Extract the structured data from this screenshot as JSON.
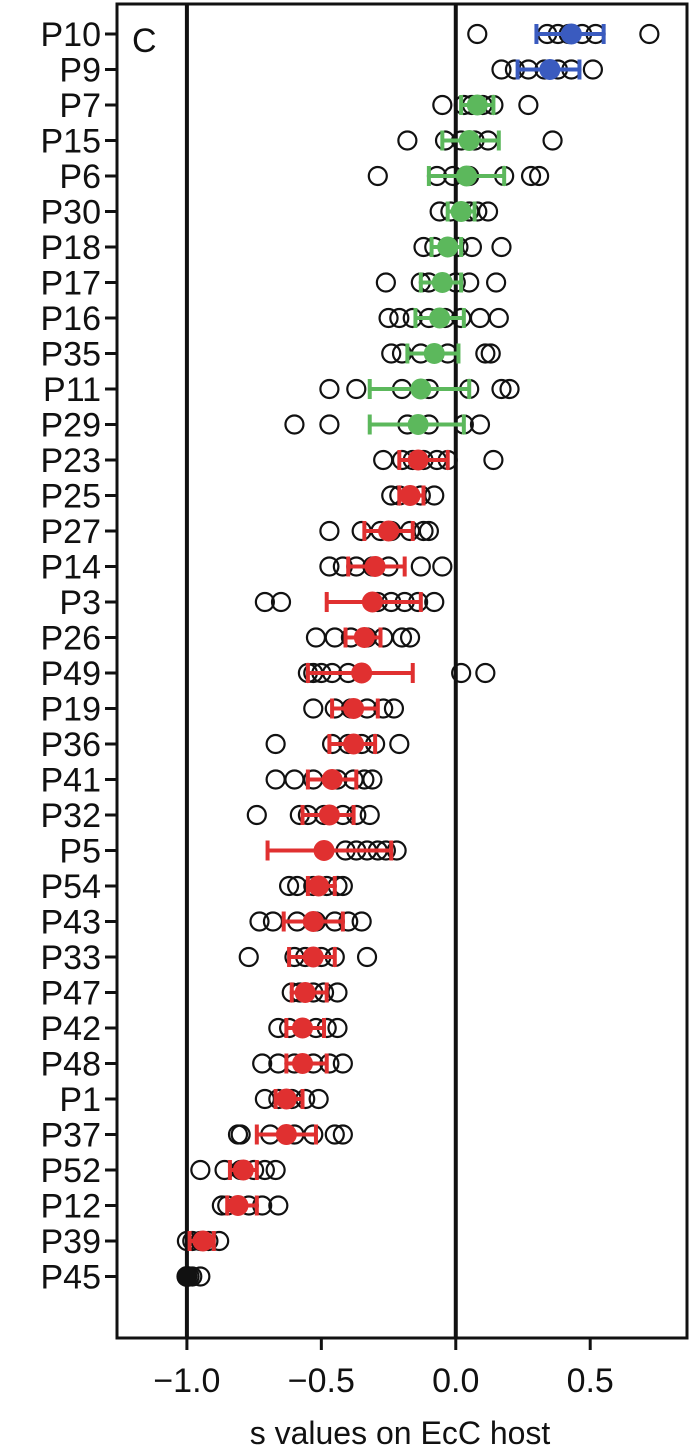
{
  "chart_data": {
    "type": "scatter",
    "panel_label": "C",
    "xlabel": "s values on EcC host",
    "xlim": [
      -1.26,
      0.86
    ],
    "xticks": [
      -1.0,
      -0.5,
      0.0,
      0.5
    ],
    "xtick_labels": [
      "−1.0",
      "−0.5",
      "0.0",
      "0.5"
    ],
    "reference_lines": [
      -1.0,
      0.0
    ],
    "grid": false,
    "legend": "none",
    "colors": {
      "blue": "#3a5bbf",
      "green": "#5cb85c",
      "red": "#e03030",
      "black": "#111111"
    },
    "rows": [
      {
        "label": "P10",
        "color": "blue",
        "mean": 0.43,
        "lo": 0.3,
        "hi": 0.55,
        "points": [
          0.08,
          0.34,
          0.38,
          0.42,
          0.47,
          0.52,
          0.72
        ]
      },
      {
        "label": "P9",
        "color": "blue",
        "mean": 0.35,
        "lo": 0.23,
        "hi": 0.46,
        "points": [
          0.17,
          0.22,
          0.27,
          0.33,
          0.38,
          0.43,
          0.51
        ]
      },
      {
        "label": "P7",
        "color": "green",
        "mean": 0.08,
        "lo": 0.02,
        "hi": 0.14,
        "points": [
          -0.05,
          0.03,
          0.06,
          0.1,
          0.14,
          0.27
        ]
      },
      {
        "label": "P15",
        "color": "green",
        "mean": 0.05,
        "lo": -0.05,
        "hi": 0.16,
        "points": [
          -0.18,
          -0.04,
          0.02,
          0.07,
          0.12,
          0.36
        ]
      },
      {
        "label": "P6",
        "color": "green",
        "mean": 0.04,
        "lo": -0.1,
        "hi": 0.18,
        "points": [
          -0.29,
          -0.07,
          -0.01,
          0.05,
          0.18,
          0.28,
          0.31
        ]
      },
      {
        "label": "P30",
        "color": "green",
        "mean": 0.02,
        "lo": -0.03,
        "hi": 0.07,
        "points": [
          -0.06,
          -0.02,
          0.02,
          0.05,
          0.08,
          0.12
        ]
      },
      {
        "label": "P18",
        "color": "green",
        "mean": -0.03,
        "lo": -0.09,
        "hi": 0.02,
        "points": [
          -0.12,
          -0.08,
          -0.03,
          0.01,
          0.06,
          0.17
        ]
      },
      {
        "label": "P17",
        "color": "green",
        "mean": -0.05,
        "lo": -0.13,
        "hi": 0.02,
        "points": [
          -0.26,
          -0.13,
          -0.1,
          -0.05,
          0.0,
          0.05,
          0.15
        ]
      },
      {
        "label": "P16",
        "color": "green",
        "mean": -0.06,
        "lo": -0.15,
        "hi": 0.03,
        "points": [
          -0.25,
          -0.21,
          -0.16,
          -0.1,
          -0.04,
          0.02,
          0.09,
          0.16
        ]
      },
      {
        "label": "P35",
        "color": "green",
        "mean": -0.08,
        "lo": -0.18,
        "hi": 0.01,
        "points": [
          -0.24,
          -0.2,
          -0.13,
          -0.08,
          -0.03,
          0.11,
          0.13
        ]
      },
      {
        "label": "P11",
        "color": "green",
        "mean": -0.13,
        "lo": -0.32,
        "hi": 0.05,
        "points": [
          -0.47,
          -0.37,
          -0.2,
          -0.13,
          -0.1,
          0.05,
          0.17,
          0.2
        ]
      },
      {
        "label": "P29",
        "color": "green",
        "mean": -0.14,
        "lo": -0.32,
        "hi": 0.03,
        "points": [
          -0.6,
          -0.47,
          -0.18,
          -0.1,
          0.03,
          0.09
        ]
      },
      {
        "label": "P23",
        "color": "red",
        "mean": -0.14,
        "lo": -0.21,
        "hi": -0.03,
        "points": [
          -0.27,
          -0.2,
          -0.16,
          -0.12,
          -0.07,
          -0.03,
          0.14
        ]
      },
      {
        "label": "P25",
        "color": "red",
        "mean": -0.17,
        "lo": -0.21,
        "hi": -0.12,
        "points": [
          -0.24,
          -0.21,
          -0.17,
          -0.13,
          -0.08
        ]
      },
      {
        "label": "P27",
        "color": "red",
        "mean": -0.25,
        "lo": -0.34,
        "hi": -0.16,
        "points": [
          -0.47,
          -0.35,
          -0.28,
          -0.24,
          -0.17,
          -0.12,
          -0.1
        ]
      },
      {
        "label": "P14",
        "color": "red",
        "mean": -0.3,
        "lo": -0.4,
        "hi": -0.19,
        "points": [
          -0.47,
          -0.42,
          -0.37,
          -0.31,
          -0.25,
          -0.13,
          -0.05
        ]
      },
      {
        "label": "P3",
        "color": "red",
        "mean": -0.31,
        "lo": -0.48,
        "hi": -0.13,
        "points": [
          -0.71,
          -0.65,
          -0.29,
          -0.24,
          -0.19,
          -0.14,
          -0.08
        ]
      },
      {
        "label": "P26",
        "color": "red",
        "mean": -0.34,
        "lo": -0.41,
        "hi": -0.28,
        "points": [
          -0.52,
          -0.45,
          -0.39,
          -0.33,
          -0.27,
          -0.2,
          -0.17
        ]
      },
      {
        "label": "P49",
        "color": "red",
        "mean": -0.35,
        "lo": -0.55,
        "hi": -0.16,
        "points": [
          -0.55,
          -0.53,
          -0.5,
          -0.46,
          -0.4,
          0.02,
          0.11
        ]
      },
      {
        "label": "P19",
        "color": "red",
        "mean": -0.38,
        "lo": -0.46,
        "hi": -0.29,
        "points": [
          -0.53,
          -0.45,
          -0.39,
          -0.33,
          -0.27,
          -0.23
        ]
      },
      {
        "label": "P36",
        "color": "red",
        "mean": -0.38,
        "lo": -0.47,
        "hi": -0.3,
        "points": [
          -0.67,
          -0.46,
          -0.4,
          -0.35,
          -0.3,
          -0.21
        ]
      },
      {
        "label": "P41",
        "color": "red",
        "mean": -0.46,
        "lo": -0.55,
        "hi": -0.37,
        "points": [
          -0.67,
          -0.6,
          -0.53,
          -0.44,
          -0.38,
          -0.34,
          -0.31
        ]
      },
      {
        "label": "P32",
        "color": "red",
        "mean": -0.47,
        "lo": -0.57,
        "hi": -0.38,
        "points": [
          -0.74,
          -0.58,
          -0.55,
          -0.49,
          -0.42,
          -0.37,
          -0.32
        ]
      },
      {
        "label": "P5",
        "color": "red",
        "mean": -0.49,
        "lo": -0.7,
        "hi": -0.24,
        "points": [
          -0.41,
          -0.37,
          -0.33,
          -0.29,
          -0.26,
          -0.22
        ]
      },
      {
        "label": "P54",
        "color": "red",
        "mean": -0.51,
        "lo": -0.55,
        "hi": -0.45,
        "points": [
          -0.62,
          -0.59,
          -0.53,
          -0.48,
          -0.44,
          -0.42
        ]
      },
      {
        "label": "P43",
        "color": "red",
        "mean": -0.53,
        "lo": -0.64,
        "hi": -0.42,
        "points": [
          -0.73,
          -0.68,
          -0.59,
          -0.52,
          -0.45,
          -0.4,
          -0.35
        ]
      },
      {
        "label": "P33",
        "color": "red",
        "mean": -0.53,
        "lo": -0.62,
        "hi": -0.45,
        "points": [
          -0.77,
          -0.6,
          -0.56,
          -0.5,
          -0.45,
          -0.33
        ]
      },
      {
        "label": "P47",
        "color": "red",
        "mean": -0.56,
        "lo": -0.61,
        "hi": -0.48,
        "points": [
          -0.61,
          -0.58,
          -0.53,
          -0.49,
          -0.44
        ]
      },
      {
        "label": "P42",
        "color": "red",
        "mean": -0.57,
        "lo": -0.63,
        "hi": -0.49,
        "points": [
          -0.66,
          -0.62,
          -0.57,
          -0.52,
          -0.48,
          -0.44
        ]
      },
      {
        "label": "P48",
        "color": "red",
        "mean": -0.57,
        "lo": -0.63,
        "hi": -0.48,
        "points": [
          -0.72,
          -0.66,
          -0.6,
          -0.53,
          -0.47,
          -0.42
        ]
      },
      {
        "label": "P1",
        "color": "red",
        "mean": -0.63,
        "lo": -0.67,
        "hi": -0.57,
        "points": [
          -0.71,
          -0.66,
          -0.61,
          -0.56,
          -0.51
        ]
      },
      {
        "label": "P37",
        "color": "red",
        "mean": -0.63,
        "lo": -0.74,
        "hi": -0.52,
        "points": [
          -0.81,
          -0.8,
          -0.69,
          -0.6,
          -0.53,
          -0.45,
          -0.42
        ]
      },
      {
        "label": "P52",
        "color": "red",
        "mean": -0.79,
        "lo": -0.84,
        "hi": -0.74,
        "points": [
          -0.95,
          -0.86,
          -0.8,
          -0.75,
          -0.71,
          -0.67
        ]
      },
      {
        "label": "P12",
        "color": "red",
        "mean": -0.81,
        "lo": -0.85,
        "hi": -0.74,
        "points": [
          -0.87,
          -0.85,
          -0.81,
          -0.77,
          -0.72,
          -0.66
        ]
      },
      {
        "label": "P39",
        "color": "red",
        "mean": -0.94,
        "lo": -0.99,
        "hi": -0.9,
        "points": [
          -1.0,
          -0.98,
          -0.95,
          -0.92,
          -0.88
        ]
      },
      {
        "label": "P45",
        "color": "black",
        "mean": -1.0,
        "lo": -1.0,
        "hi": -1.0,
        "points": [
          -1.0,
          -0.99,
          -0.98,
          -0.95
        ]
      }
    ]
  }
}
